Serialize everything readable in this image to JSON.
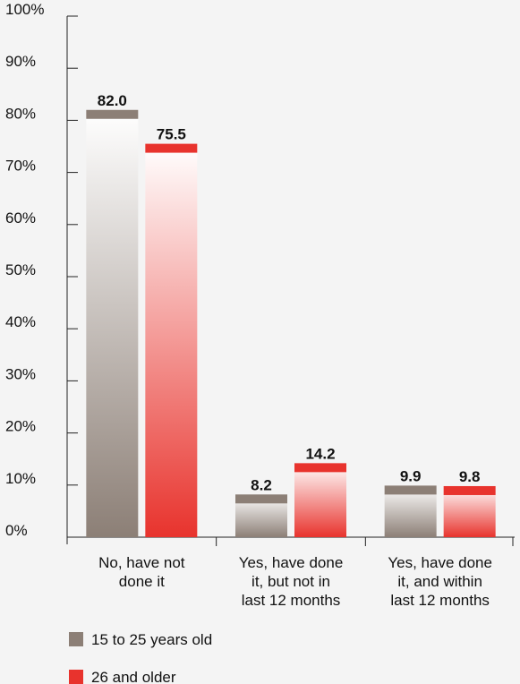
{
  "chart_data": {
    "type": "bar",
    "categories": [
      "No, have not done it",
      "Yes, have done it, but not in last 12 months",
      "Yes, have done it, and within last 12 months"
    ],
    "category_lines": [
      [
        "No, have not",
        "done it"
      ],
      [
        "Yes, have done",
        "it, but not in",
        "last 12 months"
      ],
      [
        "Yes, have done",
        "it, and within",
        "last 12 months"
      ]
    ],
    "series": [
      {
        "name": "15 to 25 years old",
        "values": [
          82.0,
          8.2,
          9.9
        ],
        "labels": [
          "82.0",
          "8.2",
          "9.9"
        ],
        "color": "#8c7f76"
      },
      {
        "name": "26 and older",
        "values": [
          75.5,
          14.2,
          9.8
        ],
        "labels": [
          "75.5",
          "14.2",
          "9.8"
        ],
        "color": "#e8332d"
      }
    ],
    "y_ticks": [
      "0%",
      "10%",
      "20%",
      "30%",
      "40%",
      "50%",
      "60%",
      "70%",
      "80%",
      "90%",
      "100%"
    ],
    "ylim": [
      0,
      100
    ],
    "grid": false,
    "legend_position": "bottom-left",
    "title": "",
    "xlabel": "",
    "ylabel": ""
  }
}
